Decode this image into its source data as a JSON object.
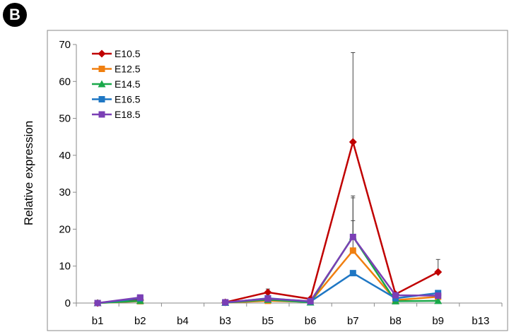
{
  "panel_label": "B",
  "chart_data": {
    "type": "line",
    "title": "",
    "xlabel": "",
    "ylabel": "Relative expression",
    "categories": [
      "b1",
      "b2",
      "b4",
      "b3",
      "b5",
      "b6",
      "b7",
      "b8",
      "b9",
      "b13"
    ],
    "ylim": [
      0,
      70
    ],
    "yticks": [
      0,
      10,
      20,
      30,
      40,
      50,
      60,
      70
    ],
    "grid": false,
    "legend_position": "top-left",
    "series": [
      {
        "name": "E10.5",
        "color": "#c00000",
        "marker": "diamond",
        "values": [
          0,
          0.8,
          null,
          0.2,
          2.9,
          1.1,
          43.6,
          2.4,
          8.4,
          null
        ],
        "error_upper": [
          null,
          null,
          null,
          null,
          3.8,
          null,
          67.8,
          null,
          11.8,
          null
        ]
      },
      {
        "name": "E12.5",
        "color": "#f07f10",
        "marker": "square",
        "values": [
          0,
          0.5,
          null,
          0.1,
          0.6,
          0.3,
          14.2,
          0.8,
          1.7,
          null
        ],
        "error_upper": [
          null,
          null,
          null,
          null,
          null,
          null,
          22.3,
          null,
          null,
          null
        ]
      },
      {
        "name": "E14.5",
        "color": "#1aa84a",
        "marker": "triangle",
        "values": [
          0,
          0.6,
          null,
          0.1,
          0.9,
          0.2,
          18.0,
          0.5,
          0.6,
          null
        ],
        "error_upper": [
          null,
          null,
          null,
          null,
          null,
          null,
          28.5,
          null,
          null,
          null
        ]
      },
      {
        "name": "E16.5",
        "color": "#1f77c4",
        "marker": "square",
        "values": [
          0,
          1.3,
          null,
          0.1,
          1.3,
          0.4,
          8.1,
          1.3,
          2.7,
          null
        ],
        "error_upper": [
          null,
          null,
          null,
          null,
          null,
          null,
          null,
          null,
          null,
          null
        ]
      },
      {
        "name": "E18.5",
        "color": "#7a3fb5",
        "marker": "square",
        "values": [
          0,
          1.5,
          null,
          0.2,
          1.2,
          0.5,
          17.9,
          2.1,
          2.0,
          null
        ],
        "error_upper": [
          null,
          null,
          null,
          null,
          null,
          null,
          29.0,
          null,
          null,
          null
        ]
      }
    ]
  }
}
